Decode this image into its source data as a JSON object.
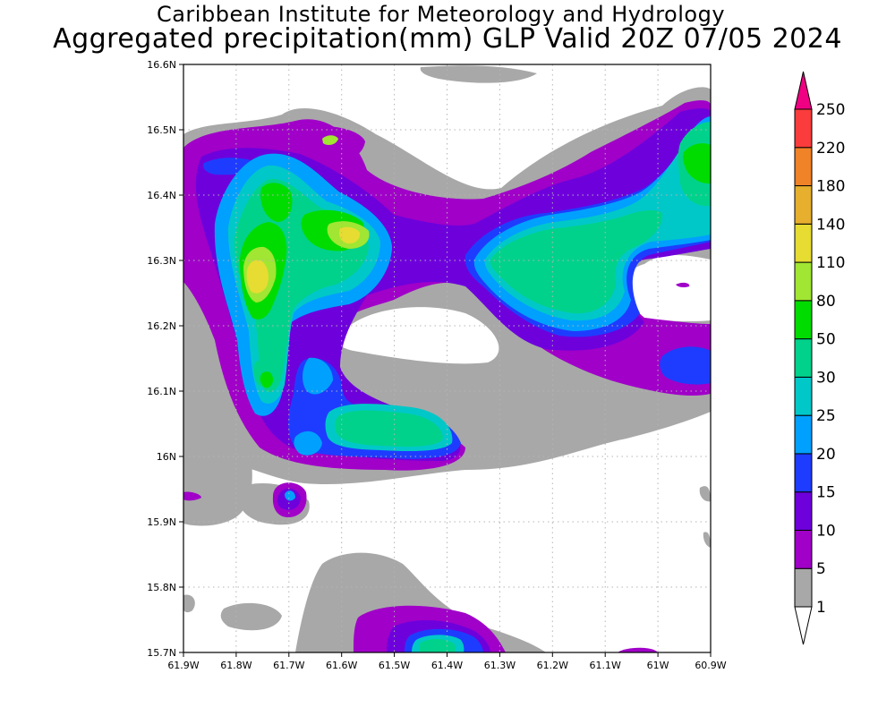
{
  "header": {
    "institute": "Caribbean Institute for Meteorology and Hydrology",
    "product": "Aggregated precipitation(mm) GLP Valid 20Z 07/05 2024"
  },
  "map": {
    "lon_labels": [
      "61.9W",
      "61.8W",
      "61.7W",
      "61.6W",
      "61.5W",
      "61.4W",
      "61.3W",
      "61.2W",
      "61.1W",
      "61W",
      "60.9W"
    ],
    "lat_labels": [
      "16.6N",
      "16.5N",
      "16.4N",
      "16.3N",
      "16.2N",
      "16.1N",
      "16N",
      "15.9N",
      "15.8N",
      "15.7N"
    ],
    "lon_range": [
      -61.9,
      -60.9
    ],
    "lat_range": [
      15.7,
      16.6
    ],
    "gridlines": "dotted",
    "precip_units": "mm"
  },
  "legend": {
    "thresholds": [
      "1",
      "5",
      "10",
      "15",
      "20",
      "25",
      "30",
      "50",
      "80",
      "110",
      "140",
      "180",
      "220",
      "250"
    ],
    "colors": [
      "#ffffff",
      "#a8a8a8",
      "#a000c8",
      "#6e00dc",
      "#1e3cff",
      "#00a0ff",
      "#00c8c8",
      "#00d28c",
      "#00dc00",
      "#a0e632",
      "#e6dc32",
      "#e6af2d",
      "#f08228",
      "#fa3c3c",
      "#f00082"
    ]
  }
}
